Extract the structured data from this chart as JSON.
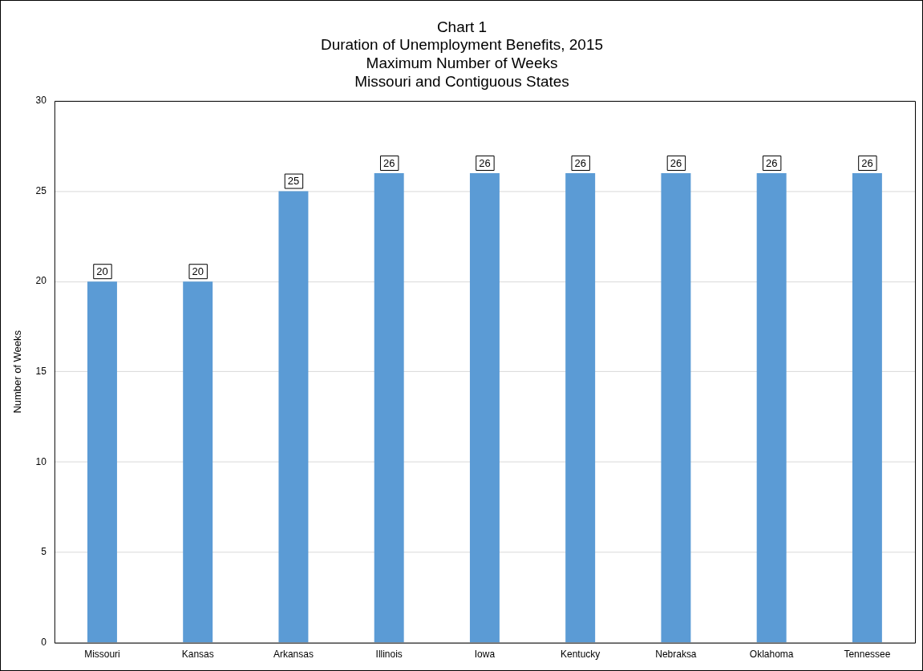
{
  "chart_data": {
    "type": "bar",
    "title": "Chart 1\nDuration of Unemployment Benefits, 2015\nMaximum Number of Weeks\nMissouri and Contiguous States",
    "ylabel": "Number of Weeks",
    "categories": [
      "Missouri",
      "Kansas",
      "Arkansas",
      "Illinois",
      "Iowa",
      "Kentucky",
      "Nebraksa",
      "Oklahoma",
      "Tennessee"
    ],
    "values": [
      20,
      20,
      25,
      26,
      26,
      26,
      26,
      26,
      26
    ],
    "color": "#5b9bd5",
    "ylim": [
      0,
      30
    ],
    "yticks": [
      0,
      5,
      10,
      15,
      20,
      25,
      30
    ],
    "grid": "y",
    "legend": false,
    "data_labels": true
  }
}
